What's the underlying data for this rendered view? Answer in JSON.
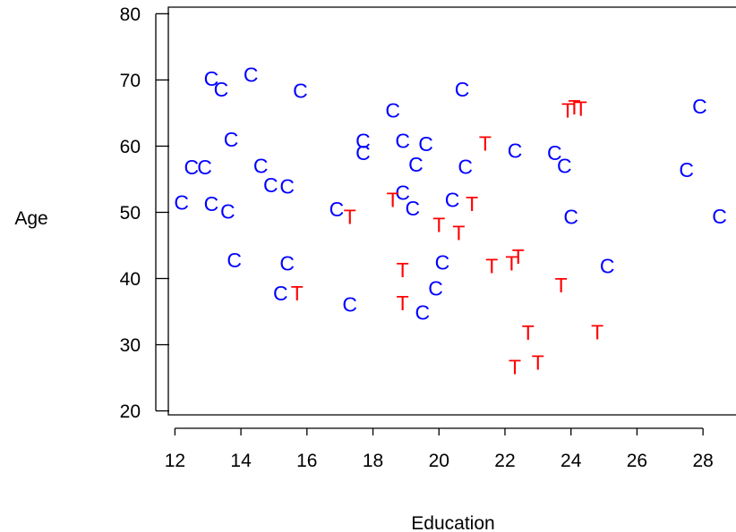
{
  "chart_data": {
    "type": "scatter",
    "xlabel": "Education",
    "ylabel": "Age",
    "xlim": [
      11.8,
      29.0
    ],
    "ylim": [
      19.4,
      81.0
    ],
    "xticks": [
      12,
      14,
      16,
      18,
      20,
      22,
      24,
      26,
      28
    ],
    "yticks": [
      20,
      30,
      40,
      50,
      60,
      70,
      80
    ],
    "grid": false,
    "colors": {
      "C": "#0000ff",
      "T": "#ff0000"
    },
    "series": [
      {
        "marker": "C",
        "points": [
          [
            13.1,
            70.2
          ],
          [
            13.4,
            68.6
          ],
          [
            14.3,
            70.8
          ],
          [
            15.8,
            68.4
          ],
          [
            12.2,
            51.5
          ],
          [
            12.5,
            56.8
          ],
          [
            12.9,
            56.8
          ],
          [
            13.1,
            51.3
          ],
          [
            13.6,
            50.1
          ],
          [
            13.7,
            61.0
          ],
          [
            13.8,
            42.8
          ],
          [
            14.6,
            57.0
          ],
          [
            14.9,
            54.1
          ],
          [
            15.4,
            53.9
          ],
          [
            15.4,
            42.3
          ],
          [
            15.2,
            37.8
          ],
          [
            17.3,
            36.1
          ],
          [
            16.9,
            50.5
          ],
          [
            17.7,
            60.8
          ],
          [
            17.7,
            59.0
          ],
          [
            18.6,
            65.4
          ],
          [
            18.9,
            60.8
          ],
          [
            18.9,
            53.0
          ],
          [
            19.2,
            50.6
          ],
          [
            19.3,
            57.2
          ],
          [
            19.6,
            60.3
          ],
          [
            19.9,
            38.5
          ],
          [
            20.1,
            42.4
          ],
          [
            19.5,
            34.9
          ],
          [
            20.4,
            51.9
          ],
          [
            20.7,
            68.6
          ],
          [
            20.8,
            56.9
          ],
          [
            22.3,
            59.3
          ],
          [
            23.5,
            59.0
          ],
          [
            23.8,
            57.0
          ],
          [
            24.0,
            49.3
          ],
          [
            25.1,
            41.9
          ],
          [
            27.5,
            56.4
          ],
          [
            27.9,
            66.0
          ],
          [
            28.5,
            49.4
          ]
        ]
      },
      {
        "marker": "T",
        "points": [
          [
            15.7,
            37.8
          ],
          [
            17.3,
            49.3
          ],
          [
            18.6,
            51.9
          ],
          [
            18.9,
            41.3
          ],
          [
            18.9,
            36.3
          ],
          [
            20.0,
            48.1
          ],
          [
            20.6,
            46.9
          ],
          [
            21.0,
            51.3
          ],
          [
            21.4,
            60.4
          ],
          [
            21.6,
            41.9
          ],
          [
            22.2,
            42.3
          ],
          [
            22.4,
            43.3
          ],
          [
            22.3,
            26.6
          ],
          [
            22.7,
            31.8
          ],
          [
            23.0,
            27.3
          ],
          [
            23.7,
            39.0
          ],
          [
            23.9,
            65.4
          ],
          [
            24.1,
            65.9
          ],
          [
            24.3,
            65.7
          ],
          [
            24.8,
            31.9
          ]
        ]
      }
    ]
  }
}
